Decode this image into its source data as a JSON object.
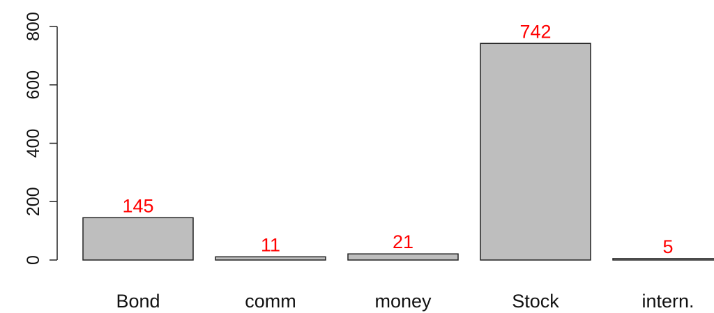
{
  "chart_data": {
    "type": "bar",
    "title": "",
    "xlabel": "",
    "ylabel": "",
    "categories": [
      "Bond",
      "comm",
      "money",
      "Stock",
      "intern."
    ],
    "values": [
      145,
      11,
      21,
      742,
      5
    ],
    "data_labels": [
      "145",
      "11",
      "21",
      "742",
      "5"
    ],
    "ylim": [
      0,
      800
    ],
    "yticks": [
      0,
      200,
      400,
      600,
      800
    ],
    "ytick_labels": [
      "0",
      "200",
      "400",
      "600",
      "800"
    ],
    "bar_color": "#bebebe",
    "bar_border_color": "#222222",
    "label_color": "#ff0000",
    "grid": false,
    "legend": "none"
  }
}
